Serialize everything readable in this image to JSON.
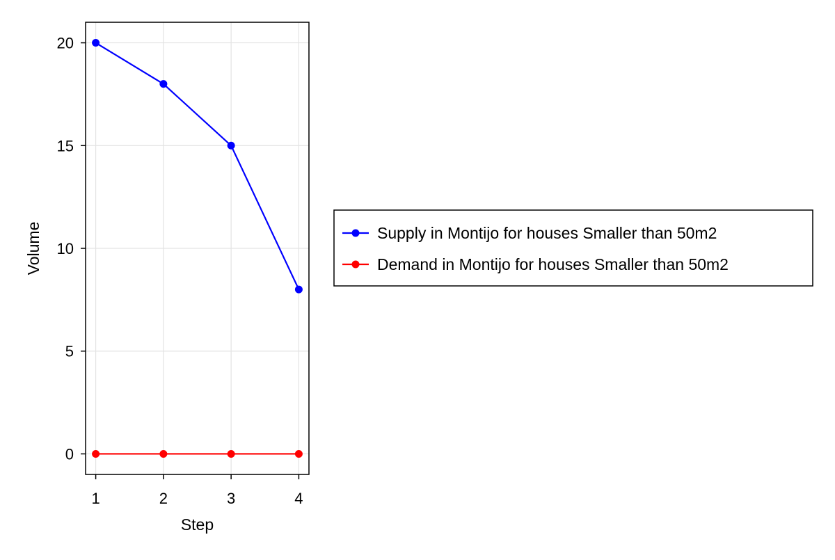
{
  "chart_data": {
    "type": "line",
    "xlabel": "Step",
    "ylabel": "Volume",
    "x": [
      1,
      2,
      3,
      4
    ],
    "xlim": [
      0.85,
      4.15
    ],
    "ylim": [
      -1,
      21
    ],
    "xticks": [
      1,
      2,
      3,
      4
    ],
    "yticks": [
      0,
      5,
      10,
      15,
      20
    ],
    "grid": true,
    "legend_position": "right",
    "series": [
      {
        "name": "Supply in Montijo for houses Smaller than 50m2",
        "color": "#0000ff",
        "values": [
          20,
          18,
          15,
          8
        ]
      },
      {
        "name": "Demand in Montijo for houses Smaller than 50m2",
        "color": "#ff0000",
        "values": [
          0,
          0,
          0,
          0
        ]
      }
    ]
  }
}
